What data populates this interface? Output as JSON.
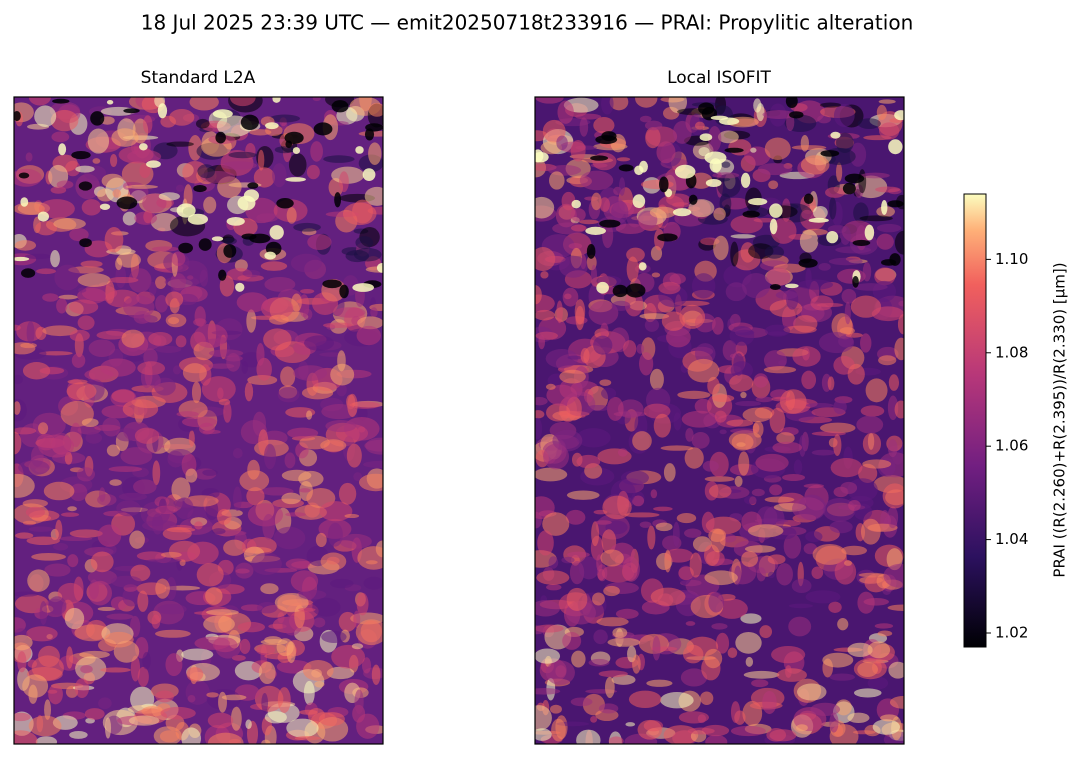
{
  "chart_data": {
    "type": "image",
    "title": "18 Jul 2025 23:39 UTC — emit20250718t233916 — PRAI: Propylitic alteration",
    "panels": [
      {
        "title": "Standard L2A"
      },
      {
        "title": "Local ISOFIT"
      }
    ],
    "colorbar": {
      "label": "PRAI  ((R(2.260)+R(2.395))/R(2.330)  [µm])",
      "colormap": "magma",
      "lim": [
        1.017,
        1.114
      ],
      "ticks": [
        1.02,
        1.04,
        1.06,
        1.08,
        {
          "value": 1.1,
          "label": "1.10"
        }
      ]
    }
  }
}
